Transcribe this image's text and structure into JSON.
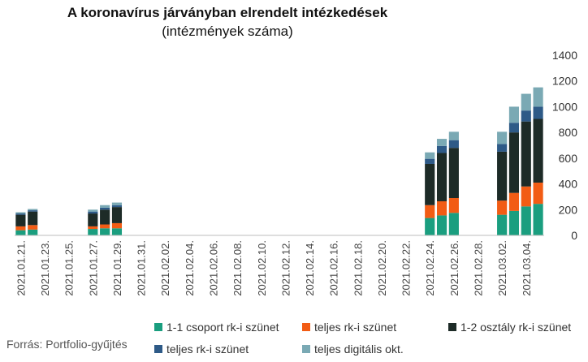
{
  "chart_data": {
    "type": "bar",
    "stacked": true,
    "title": "A koronavírus járványban elrendelt intézkedések",
    "subtitle": "(intézmények száma)",
    "source": "Forrás: Portfolio-gyűjtés",
    "ylim": [
      0,
      1400
    ],
    "yticks": [
      0,
      200,
      400,
      600,
      800,
      1000,
      1200,
      1400
    ],
    "y_axis_side": "right",
    "grid": false,
    "legend_position": "bottom",
    "categories": [
      "2021.01.21.",
      "2021.01.22.",
      "2021.01.23.",
      "2021.01.24.",
      "2021.01.25.",
      "2021.01.26.",
      "2021.01.27.",
      "2021.01.28.",
      "2021.01.29.",
      "2021.01.30.",
      "2021.01.31.",
      "2021.02.01.",
      "2021.02.02.",
      "2021.02.03.",
      "2021.02.04.",
      "2021.02.05.",
      "2021.02.06.",
      "2021.02.07.",
      "2021.02.08.",
      "2021.02.09.",
      "2021.02.10.",
      "2021.02.11.",
      "2021.02.12.",
      "2021.02.13.",
      "2021.02.14.",
      "2021.02.15.",
      "2021.02.16.",
      "2021.02.17.",
      "2021.02.18.",
      "2021.02.19.",
      "2021.02.20.",
      "2021.02.21.",
      "2021.02.22.",
      "2021.02.23.",
      "2021.02.24.",
      "2021.02.25.",
      "2021.02.26.",
      "2021.02.27.",
      "2021.02.28.",
      "2021.03.01.",
      "2021.03.02.",
      "2021.03.03.",
      "2021.03.04.",
      "2021.03.05."
    ],
    "tick_labels": [
      "2021.01.21.",
      "2021.01.23.",
      "2021.01.25.",
      "2021.01.27.",
      "2021.01.29.",
      "2021.01.31.",
      "2021.02.02.",
      "2021.02.04.",
      "2021.02.06.",
      "2021.02.08.",
      "2021.02.10.",
      "2021.02.12.",
      "2021.02.14.",
      "2021.02.16.",
      "2021.02.18.",
      "2021.02.20.",
      "2021.02.22.",
      "2021.02.24.",
      "2021.02.26.",
      "2021.02.28.",
      "2021.03.02.",
      "2021.03.04."
    ],
    "series": [
      {
        "name": "1-1 csoport rk-i szünet",
        "color": "#1a9e7f",
        "values": [
          40,
          45,
          0,
          0,
          0,
          0,
          50,
          55,
          55,
          0,
          0,
          0,
          0,
          0,
          0,
          0,
          0,
          0,
          0,
          0,
          0,
          0,
          0,
          0,
          0,
          0,
          0,
          0,
          0,
          0,
          0,
          0,
          0,
          0,
          135,
          155,
          175,
          0,
          0,
          0,
          160,
          190,
          225,
          245
        ]
      },
      {
        "name": "teljes rk-i szünet",
        "color": "#f25c14",
        "values": [
          30,
          35,
          0,
          0,
          0,
          0,
          20,
          30,
          40,
          0,
          0,
          0,
          0,
          0,
          0,
          0,
          0,
          0,
          0,
          0,
          0,
          0,
          0,
          0,
          0,
          0,
          0,
          0,
          0,
          0,
          0,
          0,
          0,
          0,
          100,
          110,
          115,
          0,
          0,
          0,
          110,
          140,
          155,
          165
        ]
      },
      {
        "name": "1-2 osztály rk-i szünet",
        "color": "#1d2b27",
        "values": [
          90,
          105,
          0,
          0,
          0,
          0,
          100,
          115,
          125,
          0,
          0,
          0,
          0,
          0,
          0,
          0,
          0,
          0,
          0,
          0,
          0,
          0,
          0,
          0,
          0,
          0,
          0,
          0,
          0,
          0,
          0,
          0,
          0,
          0,
          320,
          375,
          390,
          0,
          0,
          0,
          380,
          470,
          505,
          495
        ]
      },
      {
        "name": "teljes rk-i szünet",
        "color": "#2e5a87",
        "values": [
          10,
          10,
          0,
          0,
          0,
          0,
          15,
          15,
          15,
          0,
          0,
          0,
          0,
          0,
          0,
          0,
          0,
          0,
          0,
          0,
          0,
          0,
          0,
          0,
          0,
          0,
          0,
          0,
          0,
          0,
          0,
          0,
          0,
          0,
          40,
          55,
          60,
          0,
          0,
          0,
          60,
          75,
          85,
          95
        ]
      },
      {
        "name": "teljes digitális okt.",
        "color": "#7aa9b4",
        "values": [
          10,
          10,
          0,
          0,
          0,
          0,
          15,
          20,
          20,
          0,
          0,
          0,
          0,
          0,
          0,
          0,
          0,
          0,
          0,
          0,
          0,
          0,
          0,
          0,
          0,
          0,
          0,
          0,
          0,
          0,
          0,
          0,
          0,
          0,
          50,
          55,
          65,
          0,
          0,
          0,
          95,
          125,
          130,
          150
        ]
      }
    ]
  }
}
